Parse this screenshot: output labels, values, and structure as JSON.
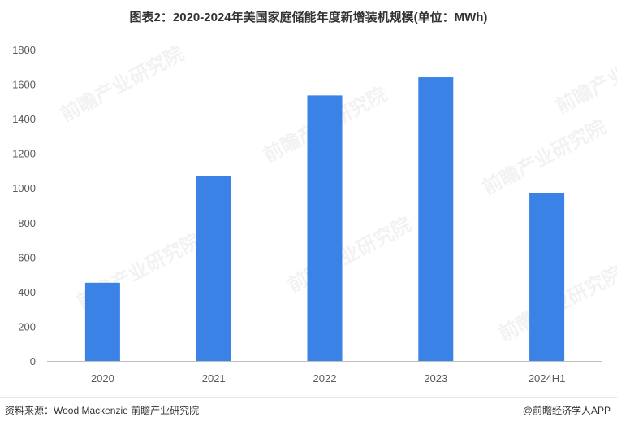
{
  "title": "图表2：2020-2024年美国家庭储能年度新增装机规模(单位：MWh)",
  "footer": {
    "source": "资料来源：Wood Mackenzie 前瞻产业研究院",
    "brand": "@前瞻经济学人APP"
  },
  "watermark": {
    "text": "前瞻产业研究院"
  },
  "colors": {
    "bar": "#3B82E6",
    "axis": "#BFBFBF",
    "tick_text": "#595959"
  },
  "chart_data": {
    "type": "bar",
    "categories": [
      "2020",
      "2021",
      "2022",
      "2023",
      "2024H1"
    ],
    "values": [
      452,
      1070,
      1535,
      1640,
      972
    ],
    "title": "图表2：2020-2024年美国家庭储能年度新增装机规模(单位：MWh)",
    "xlabel": "",
    "ylabel": "",
    "ylim": [
      0,
      1800
    ],
    "yticks": [
      0,
      200,
      400,
      600,
      800,
      1000,
      1200,
      1400,
      1600,
      1800
    ],
    "grid": false,
    "legend": "none"
  }
}
